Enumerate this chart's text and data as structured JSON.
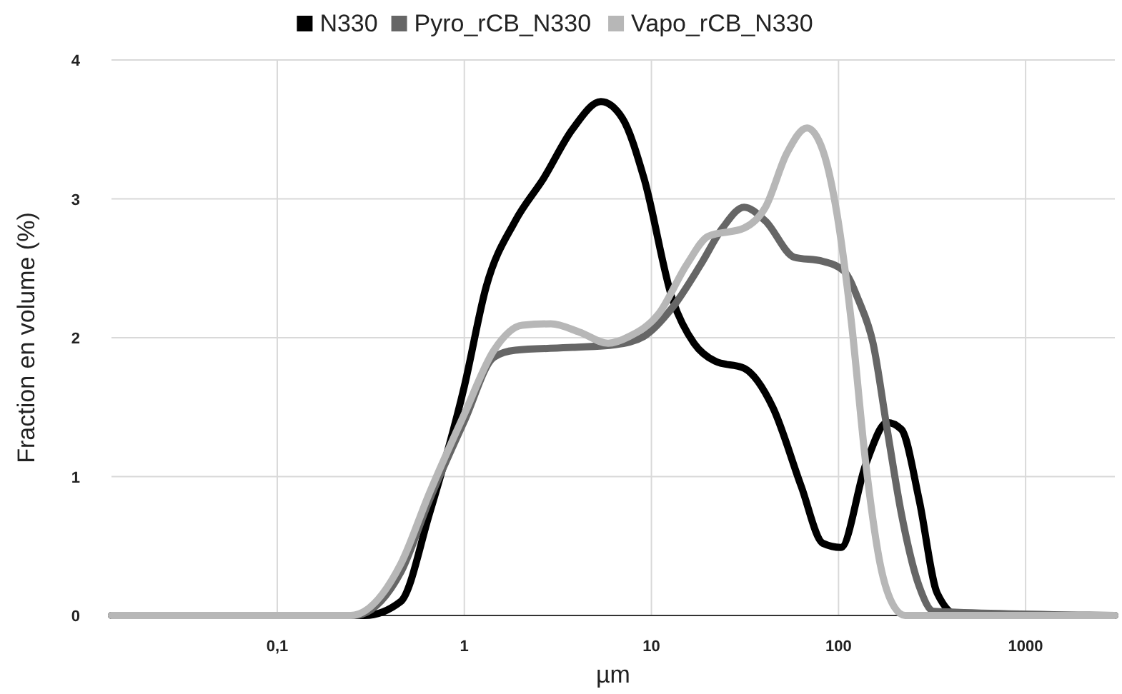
{
  "chart_data": {
    "type": "line",
    "xlabel": "µm",
    "ylabel": "Fraction en volume (%)",
    "log": "x",
    "xlim": [
      0.013,
      3000
    ],
    "ylim": [
      0,
      4
    ],
    "xticks": [
      {
        "value": 0.1,
        "label": "0,1"
      },
      1,
      10,
      100,
      1000
    ],
    "yticks": [
      0,
      1,
      2,
      3,
      4
    ],
    "grid": true,
    "legend": "top",
    "marker": "none",
    "line_style": "solid",
    "series": [
      {
        "name": "N330",
        "color": "#000000",
        "x": [
          0.013,
          0.294,
          0.457,
          0.65,
          1,
          1.31,
          1.87,
          2.66,
          3.78,
          5.37,
          7.0,
          9.12,
          13.0,
          16.9,
          22.0,
          31.3,
          44.5,
          63.2,
          82.4,
          103,
          140,
          182,
          217,
          270,
          337,
          439,
          3000
        ],
        "values": [
          0,
          0,
          0.1,
          0.73,
          1.65,
          2.37,
          2.84,
          3.15,
          3.5,
          3.7,
          3.58,
          3.15,
          2.27,
          1.96,
          1.83,
          1.78,
          1.5,
          0.93,
          0.52,
          0.49,
          1.09,
          1.39,
          1.34,
          0.83,
          0.16,
          0,
          0
        ]
      },
      {
        "name": "Pyro_rCB_N330",
        "color": "#666666",
        "x": [
          0.013,
          0.258,
          0.457,
          0.65,
          1,
          1.44,
          1.87,
          3.78,
          6.41,
          9.12,
          13.0,
          18.4,
          24.0,
          31.3,
          40.7,
          57.9,
          82.4,
          107,
          128,
          153,
          182,
          217,
          270,
          323,
          3000
        ],
        "values": [
          0,
          0,
          0.31,
          0.83,
          1.4,
          1.86,
          1.91,
          1.93,
          1.95,
          2.01,
          2.22,
          2.53,
          2.79,
          2.94,
          2.84,
          2.58,
          2.55,
          2.48,
          2.27,
          1.96,
          1.34,
          0.73,
          0.21,
          0.03,
          0
        ]
      },
      {
        "name": "Vapo_rCB_N330",
        "color": "#b7b7b7",
        "x": [
          0.013,
          0.247,
          0.457,
          0.65,
          1,
          1.44,
          2.04,
          2.9,
          4.13,
          5.87,
          7.64,
          10.9,
          15.5,
          20.1,
          31.3,
          40.7,
          53.0,
          67.9,
          82.4,
          98.2,
          117,
          140,
          167,
          199,
          227,
          3000
        ],
        "values": [
          0,
          0,
          0.37,
          0.88,
          1.45,
          1.91,
          2.09,
          2.1,
          2.04,
          1.96,
          2.01,
          2.17,
          2.53,
          2.73,
          2.79,
          2.94,
          3.33,
          3.51,
          3.35,
          2.89,
          2.12,
          1.09,
          0.37,
          0.06,
          0,
          0
        ]
      }
    ]
  }
}
